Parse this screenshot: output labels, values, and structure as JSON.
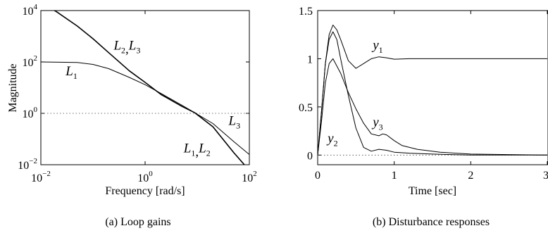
{
  "chart_data": [
    {
      "type": "line",
      "caption": "(a) Loop gains",
      "xlabel": "Frequency [rad/s]",
      "ylabel": "Magnitude",
      "xscale": "log",
      "yscale": "log",
      "xlim": [
        0.01,
        100
      ],
      "ylim": [
        0.01,
        10000
      ],
      "xticks": [
        {
          "value": 0.01,
          "base": "10",
          "exp": "−2"
        },
        {
          "value": 1,
          "base": "10",
          "exp": "0"
        },
        {
          "value": 100,
          "base": "10",
          "exp": "2"
        }
      ],
      "yticks": [
        {
          "value": 0.01,
          "base": "10",
          "exp": "−2"
        },
        {
          "value": 1,
          "base": "10",
          "exp": "0"
        },
        {
          "value": 100,
          "base": "10",
          "exp": "2"
        },
        {
          "value": 10000,
          "base": "10",
          "exp": "4"
        }
      ],
      "reference_line": {
        "y": 1,
        "style": "dotted"
      },
      "series": [
        {
          "name": "L1",
          "x": [
            0.01,
            0.05,
            0.1,
            0.2,
            0.5,
            1,
            2,
            5,
            9,
            20,
            50,
            100
          ],
          "y": [
            100,
            95,
            80,
            55,
            25,
            13,
            6,
            2.1,
            1.05,
            0.3,
            0.03,
            0.006
          ]
        },
        {
          "name": "L2,L3",
          "x": [
            0.01,
            0.02,
            0.05,
            0.1,
            0.2,
            0.5,
            1,
            2,
            5,
            9,
            20,
            50,
            100
          ],
          "y": [
            20000,
            9000,
            2500,
            800,
            230,
            45,
            16,
            5.5,
            1.9,
            1.05,
            0.3,
            0.03,
            0.006
          ]
        },
        {
          "name": "L3",
          "x": [
            9,
            20,
            50,
            100
          ],
          "y": [
            1.05,
            0.4,
            0.08,
            0.025
          ]
        }
      ],
      "annotations": [
        {
          "text": "L2,L3",
          "parts": [
            [
              "L",
              "2"
            ],
            [
              "L",
              "3"
            ]
          ],
          "x": 0.25,
          "y": 300
        },
        {
          "text": "L1",
          "parts": [
            [
              "L",
              "1"
            ]
          ],
          "x": 0.03,
          "y": 30
        },
        {
          "text": "L3",
          "parts": [
            [
              "L",
              "3"
            ]
          ],
          "x": 40,
          "y": 0.35
        },
        {
          "text": "L1,L2",
          "parts": [
            [
              "L",
              "1"
            ],
            [
              "L",
              "2"
            ]
          ],
          "x": 5.5,
          "y": 0.03
        }
      ]
    },
    {
      "type": "line",
      "caption": "(b) Disturbance responses",
      "xlabel": "Time [sec]",
      "ylabel": "",
      "xlim": [
        0,
        3
      ],
      "ylim": [
        -0.1,
        1.5
      ],
      "xticks": [
        0,
        1,
        2,
        3
      ],
      "yticks": [
        0,
        0.5,
        1,
        1.5
      ],
      "reference_line": {
        "y": 0,
        "style": "dotted"
      },
      "series": [
        {
          "name": "y1",
          "x": [
            0,
            0.05,
            0.1,
            0.15,
            0.2,
            0.25,
            0.3,
            0.4,
            0.5,
            0.6,
            0.7,
            0.8,
            0.9,
            1.0,
            1.2,
            1.5,
            2,
            3
          ],
          "y": [
            0,
            0.45,
            0.95,
            1.25,
            1.35,
            1.3,
            1.2,
            0.98,
            0.9,
            0.95,
            1.0,
            1.02,
            1.01,
            0.995,
            1.0,
            1.0,
            1.0,
            1.0
          ]
        },
        {
          "name": "y2",
          "x": [
            0,
            0.05,
            0.1,
            0.15,
            0.2,
            0.25,
            0.3,
            0.4,
            0.5,
            0.6,
            0.7,
            0.8,
            0.9,
            1.0,
            1.2,
            1.5,
            2,
            3
          ],
          "y": [
            0,
            0.45,
            0.95,
            1.2,
            1.28,
            1.2,
            1.0,
            0.62,
            0.28,
            0.08,
            0.04,
            0.06,
            0.05,
            0.03,
            0.02,
            0.01,
            0.0,
            0.0
          ]
        },
        {
          "name": "y3",
          "x": [
            0,
            0.05,
            0.1,
            0.15,
            0.2,
            0.3,
            0.4,
            0.5,
            0.6,
            0.7,
            0.8,
            0.85,
            0.9,
            1.0,
            1.1,
            1.3,
            1.6,
            2,
            2.5,
            3
          ],
          "y": [
            0,
            0.35,
            0.75,
            0.95,
            1.0,
            0.85,
            0.65,
            0.48,
            0.33,
            0.22,
            0.2,
            0.22,
            0.21,
            0.15,
            0.1,
            0.06,
            0.03,
            0.01,
            0.005,
            0.0
          ]
        }
      ],
      "annotations": [
        {
          "text": "y1",
          "parts": [
            [
              "y",
              "1"
            ]
          ],
          "x": 0.72,
          "y": 1.1
        },
        {
          "text": "y3",
          "parts": [
            [
              "y",
              "3"
            ]
          ],
          "x": 0.72,
          "y": 0.3
        },
        {
          "text": "y2",
          "parts": [
            [
              "y",
              "2"
            ]
          ],
          "x": 0.13,
          "y": 0.13
        }
      ]
    }
  ]
}
